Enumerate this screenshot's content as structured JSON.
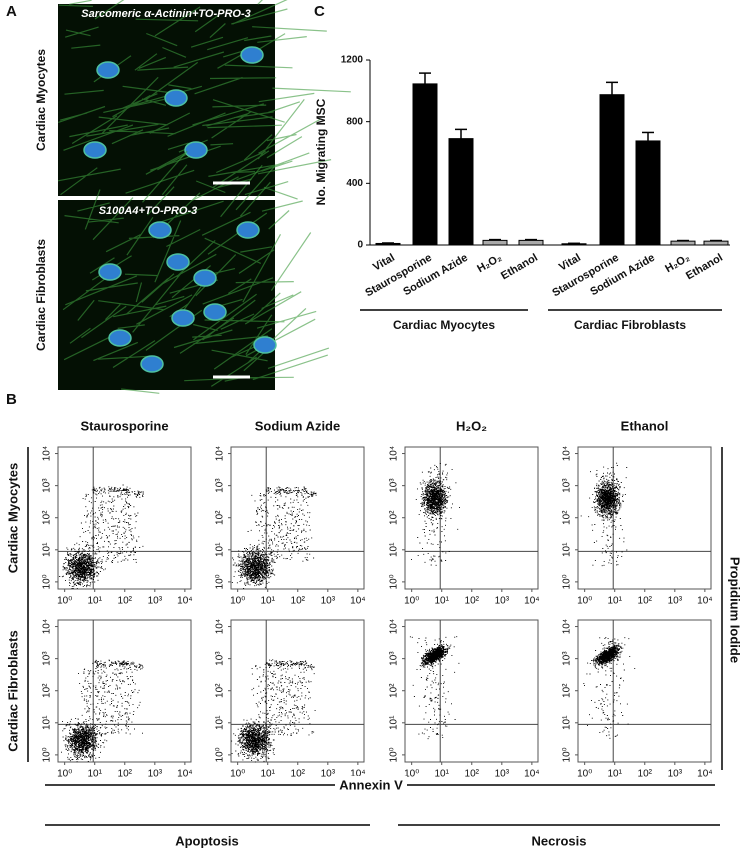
{
  "panels": {
    "a": "A",
    "b": "B",
    "c": "C"
  },
  "imaging": {
    "top_caption": "Sarcomeric α-Actinin+TO-PRO-3",
    "bottom_caption": "S100A4+TO-PRO-3",
    "rows": [
      "Cardiac Myocytes",
      "Cardiac Fibroblasts"
    ]
  },
  "chart_data": {
    "type": "bar",
    "ylabel": "No. Migrating MSC",
    "categories": [
      "Vital",
      "Staurosporine",
      "Sodium Azide",
      "H₂O₂",
      "Ethanol",
      "Vital",
      "Staurosporine",
      "Sodium Azide",
      "H₂O₂",
      "Ethanol"
    ],
    "values": [
      10,
      1045,
      690,
      30,
      30,
      8,
      975,
      675,
      25,
      25
    ],
    "errors": [
      3,
      70,
      60,
      5,
      5,
      3,
      80,
      55,
      4,
      4
    ],
    "colors": [
      "#000000",
      "#000000",
      "#000000",
      "#aaaaaa",
      "#aaaaaa",
      "#000000",
      "#000000",
      "#000000",
      "#aaaaaa",
      "#aaaaaa"
    ],
    "groups": [
      "Cardiac Myocytes",
      "Cardiac Fibroblasts"
    ],
    "ylim": [
      0,
      1200
    ],
    "yticks": [
      0,
      400,
      800,
      1200
    ]
  },
  "flow": {
    "columns": [
      "Staurosporine",
      "Sodium Azide",
      "H₂O₂",
      "Ethanol"
    ],
    "rows": [
      "Cardiac Myocytes",
      "Cardiac Fibroblasts"
    ],
    "log": true,
    "lim": [
      0.6,
      16000
    ],
    "ticks": [
      {
        "value": 1,
        "label": "10⁰"
      },
      {
        "value": 10,
        "label": "10¹"
      },
      {
        "value": 100,
        "label": "10²"
      },
      {
        "value": 1000,
        "label": "10³"
      },
      {
        "value": 10000,
        "label": "10⁴"
      }
    ],
    "ylabel": "Propidium Iodide",
    "xlabel": "Annexin V",
    "groups": [
      "Apoptosis",
      "Necrosis"
    ]
  }
}
